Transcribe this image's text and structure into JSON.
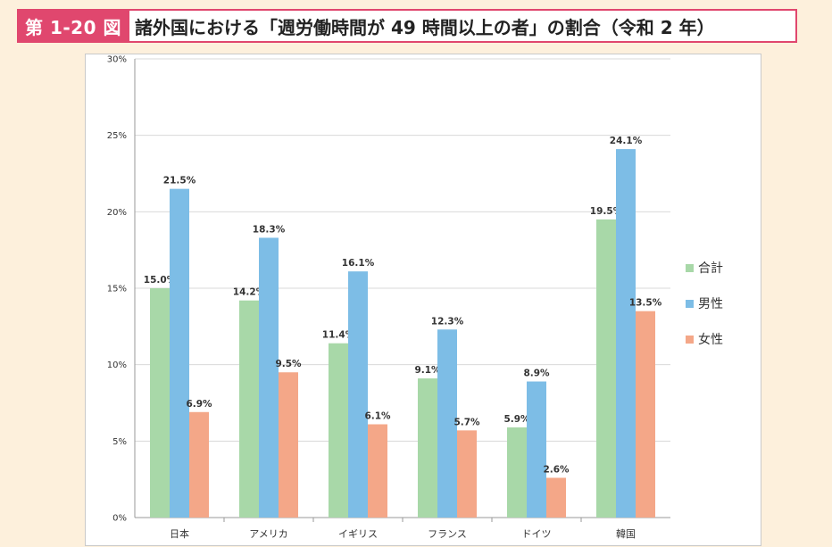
{
  "figure": {
    "number": "第 1-20 図",
    "title": "諸外国における「週労働時間が 49 時間以上の者」の割合（令和 2 年）"
  },
  "chart_data": {
    "type": "bar",
    "title": "",
    "xlabel": "",
    "ylabel": "",
    "categories": [
      "日本",
      "アメリカ",
      "イギリス",
      "フランス",
      "ドイツ",
      "韓国"
    ],
    "series": [
      {
        "name": "合計",
        "color": "#a8d8a8",
        "values": [
          15.0,
          14.2,
          11.4,
          9.1,
          5.9,
          19.5
        ],
        "labels": [
          "15.0%",
          "14.2%",
          "11.4%",
          "9.1%",
          "5.9%",
          "19.5%"
        ]
      },
      {
        "name": "男性",
        "color": "#7dbde6",
        "values": [
          21.5,
          18.3,
          16.1,
          12.3,
          8.9,
          24.1
        ],
        "labels": [
          "21.5%",
          "18.3%",
          "16.1%",
          "12.3%",
          "8.9%",
          "24.1%"
        ]
      },
      {
        "name": "女性",
        "color": "#f4a788",
        "values": [
          6.9,
          9.5,
          6.1,
          5.7,
          2.6,
          13.5
        ],
        "labels": [
          "6.9%",
          "9.5%",
          "6.1%",
          "5.7%",
          "2.6%",
          "13.5%"
        ]
      }
    ],
    "ylim": [
      0,
      30
    ],
    "yticks": [
      0,
      5,
      10,
      15,
      20,
      25,
      30
    ],
    "ytick_labels": [
      "0%",
      "5%",
      "10%",
      "15%",
      "20%",
      "25%",
      "30%"
    ],
    "grid": true,
    "legend_position": "right"
  }
}
